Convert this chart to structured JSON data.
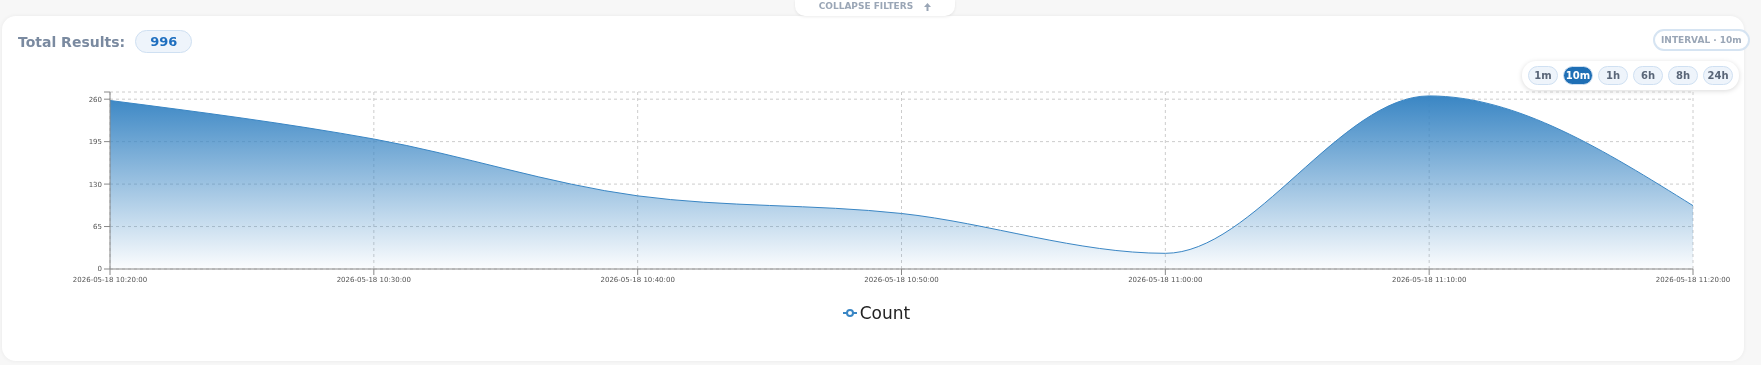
{
  "chart_data": {
    "type": "area",
    "x": [
      "2026-05-18T10:20",
      "2026-05-18T10:30",
      "2026-05-18T10:40",
      "2026-05-18T10:50",
      "2026-05-18T11:00",
      "2026-05-18T11:10",
      "2026-05-18T11:20"
    ],
    "series": [
      {
        "name": "Count",
        "color": "#3a86c4",
        "values": [
          258,
          199,
          112,
          85,
          24,
          265,
          97
        ]
      }
    ],
    "xlim": [
      "2026-05-18T10:20",
      "2026-05-18T11:20"
    ],
    "xticks": [
      {
        "value": "2026-05-18T10:20",
        "label": "2026-05-18 10:20:00"
      },
      {
        "value": "2026-05-18T10:30",
        "label": "2026-05-18 10:30:00"
      },
      {
        "value": "2026-05-18T10:40",
        "label": "2026-05-18 10:40:00"
      },
      {
        "value": "2026-05-18T10:50",
        "label": "2026-05-18 10:50:00"
      },
      {
        "value": "2026-05-18T11:00",
        "label": "2026-05-18 11:00:00"
      },
      {
        "value": "2026-05-18T11:10",
        "label": "2026-05-18 11:10:00"
      },
      {
        "value": "2026-05-18T11:20",
        "label": "2026-05-18 11:20:00"
      }
    ],
    "ylim": [
      0,
      271
    ],
    "yticks": [
      0,
      65,
      130,
      195,
      260,
      {
        "value": 271,
        "label": null
      }
    ],
    "grid": true,
    "legend": "bottom",
    "annotations": [
      "COLLAPSE FILTERS",
      "Total Results:",
      "996",
      "INTERVAL · 10m",
      "1m",
      "10m",
      "1h",
      "6h",
      "8h",
      "24h"
    ]
  }
}
